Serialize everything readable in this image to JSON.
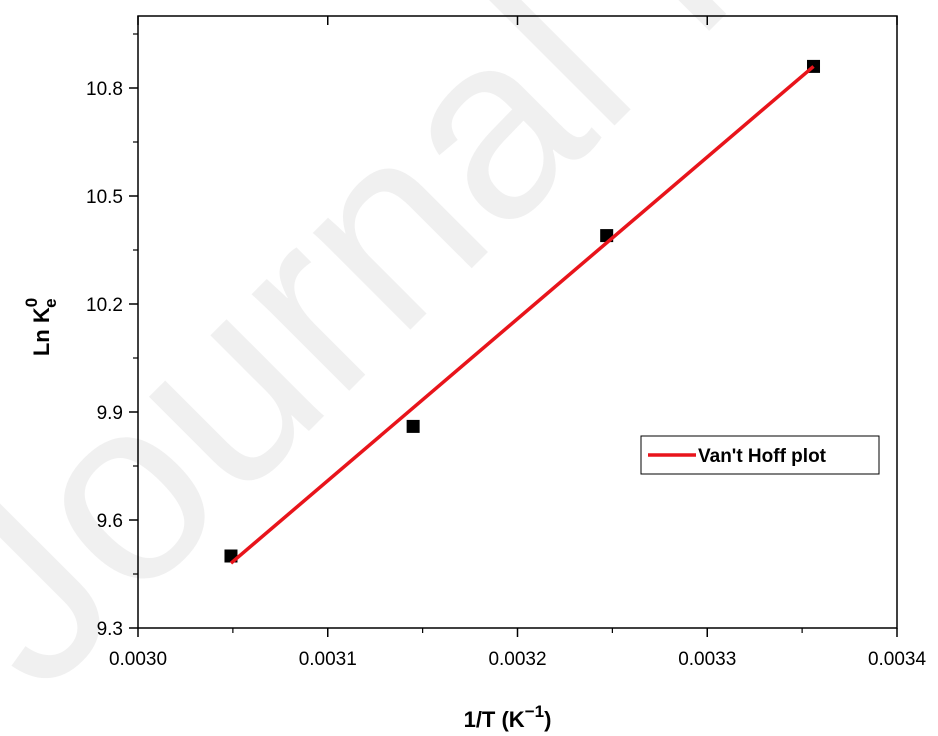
{
  "watermark": "Journal Pre",
  "chart_data": {
    "type": "scatter",
    "xlabel": "1/T (K",
    "xlabel_sup": "−1",
    "xlabel_end": ")",
    "ylabel": "Ln K",
    "ylabel_sub": "e",
    "ylabel_sup": "0",
    "xlim": [
      0.003,
      0.0034
    ],
    "ylim": [
      9.3,
      11.0
    ],
    "x_ticks": [
      0.003,
      0.0031,
      0.0032,
      0.0033,
      0.0034
    ],
    "x_tick_labels": [
      "0.0030",
      "0.0031",
      "0.0032",
      "0.0033",
      "0.0034"
    ],
    "y_ticks": [
      9.3,
      9.6,
      9.9,
      10.2,
      10.5,
      10.8
    ],
    "y_tick_labels": [
      "9.3",
      "9.6",
      "9.9",
      "10.2",
      "10.5",
      "10.8"
    ],
    "grid": false,
    "legend_position": "right",
    "series": [
      {
        "type": "scatter",
        "marker": "square",
        "color": "#000000",
        "points": [
          {
            "x": 0.003049,
            "y": 9.5
          },
          {
            "x": 0.003145,
            "y": 9.86
          },
          {
            "x": 0.003247,
            "y": 10.39
          },
          {
            "x": 0.003356,
            "y": 10.86
          }
        ]
      },
      {
        "name": "Van't Hoff plot",
        "type": "line",
        "color": "#e8141b",
        "points": [
          {
            "x": 0.003049,
            "y": 9.48
          },
          {
            "x": 0.003356,
            "y": 10.86
          }
        ]
      }
    ]
  }
}
